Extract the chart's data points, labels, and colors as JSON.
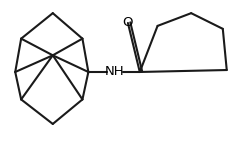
{
  "background_color": "#ffffff",
  "line_color": "#1a1a1a",
  "line_width": 1.5,
  "text_color": "#000000",
  "font_size": 9.5,
  "figsize": [
    2.4,
    1.42
  ],
  "dpi": 100,
  "O_label": {
    "text": "O"
  },
  "NH_label": {
    "text": "NH"
  }
}
